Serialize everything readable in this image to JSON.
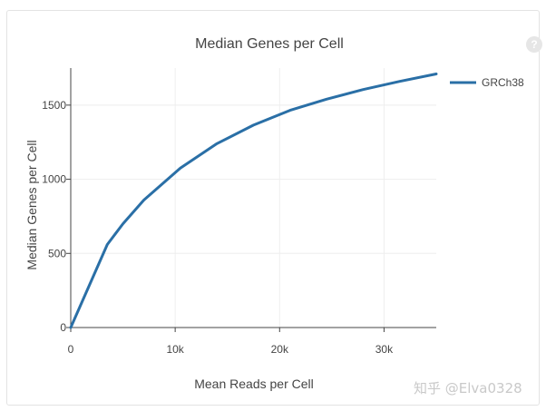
{
  "chart_data": {
    "type": "line",
    "title": "Median Genes per Cell",
    "xlabel": "Mean Reads per Cell",
    "ylabel": "Median Genes per Cell",
    "xlim": [
      0,
      35000
    ],
    "ylim": [
      0,
      1750
    ],
    "x_ticks": [
      0,
      10000,
      20000,
      30000
    ],
    "x_tick_labels": [
      "0",
      "10k",
      "20k",
      "30k"
    ],
    "y_ticks": [
      0,
      500,
      1000,
      1500
    ],
    "y_tick_labels": [
      "0",
      "500",
      "1000",
      "1500"
    ],
    "grid": true,
    "legend_position": "right",
    "series": [
      {
        "name": "GRCh38",
        "color": "#2a6fa6",
        "x": [
          0,
          3500,
          5000,
          7000,
          10500,
          14000,
          17500,
          21000,
          24500,
          28000,
          31500,
          35000
        ],
        "y": [
          0,
          560,
          700,
          860,
          1075,
          1240,
          1365,
          1465,
          1540,
          1605,
          1660,
          1710
        ]
      }
    ]
  },
  "help_icon_glyph": "?",
  "watermark": "知乎 @Elva0328"
}
